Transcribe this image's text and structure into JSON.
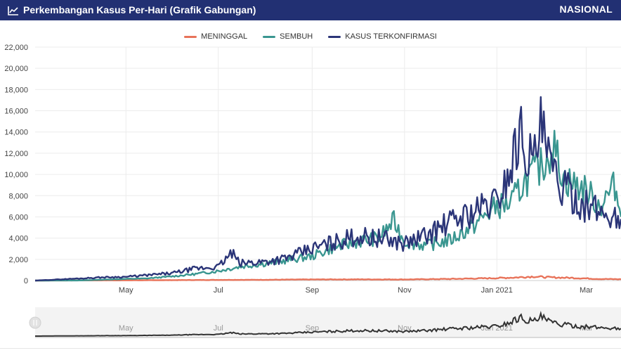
{
  "header": {
    "title": "Perkembangan Kasus Per-Hari (Grafik Gabungan)",
    "region": "NASIONAL",
    "bg_color": "#223073",
    "icon": "line-chart-icon"
  },
  "chart_data": {
    "type": "line",
    "x_axis_type": "date",
    "xlim": [
      "2020-03-02",
      "2021-03-24"
    ],
    "x_ticks": [
      {
        "date": "2020-05-01",
        "label": "May"
      },
      {
        "date": "2020-07-01",
        "label": "Jul"
      },
      {
        "date": "2020-09-01",
        "label": "Sep"
      },
      {
        "date": "2020-11-01",
        "label": "Nov"
      },
      {
        "date": "2021-01-01",
        "label": "Jan 2021"
      },
      {
        "date": "2021-03-01",
        "label": "Mar"
      }
    ],
    "ylim": [
      0,
      22000
    ],
    "y_ticks": [
      0,
      2000,
      4000,
      6000,
      8000,
      10000,
      12000,
      14000,
      16000,
      18000,
      20000,
      22000
    ],
    "y_tick_labels": [
      "0",
      "2,000",
      "4,000",
      "6,000",
      "8,000",
      "10,000",
      "12,000",
      "14,000",
      "16,000",
      "18,000",
      "20,000",
      "22,000"
    ],
    "grid": true,
    "legend_position": "top-center",
    "navigator": true,
    "series": [
      {
        "name": "MENINGGAL",
        "color": "#e8735a",
        "points": [
          [
            "2020-03-02",
            0
          ],
          [
            "2020-04-01",
            15
          ],
          [
            "2020-05-01",
            20
          ],
          [
            "2020-06-01",
            40
          ],
          [
            "2020-07-01",
            60
          ],
          [
            "2020-08-01",
            70
          ],
          [
            "2020-09-01",
            100
          ],
          [
            "2020-10-01",
            110
          ],
          [
            "2020-11-01",
            100
          ],
          [
            "2020-12-01",
            150
          ],
          [
            "2021-01-01",
            230
          ],
          [
            "2021-01-15",
            300
          ],
          [
            "2021-01-25",
            380
          ],
          [
            "2021-02-05",
            300
          ],
          [
            "2021-02-20",
            250
          ],
          [
            "2021-03-01",
            200
          ],
          [
            "2021-03-10",
            150
          ],
          [
            "2021-03-24",
            120
          ]
        ]
      },
      {
        "name": "SEMBUH",
        "color": "#3a9690",
        "points": [
          [
            "2020-03-02",
            0
          ],
          [
            "2020-04-01",
            10
          ],
          [
            "2020-04-15",
            80
          ],
          [
            "2020-05-01",
            150
          ],
          [
            "2020-05-15",
            200
          ],
          [
            "2020-06-01",
            400
          ],
          [
            "2020-06-15",
            600
          ],
          [
            "2020-07-01",
            900
          ],
          [
            "2020-07-15",
            1300
          ],
          [
            "2020-08-01",
            1600
          ],
          [
            "2020-08-15",
            1900
          ],
          [
            "2020-09-01",
            2300
          ],
          [
            "2020-09-15",
            3100
          ],
          [
            "2020-10-01",
            3700
          ],
          [
            "2020-10-15",
            4000
          ],
          [
            "2020-10-25",
            5600
          ],
          [
            "2020-11-01",
            3700
          ],
          [
            "2020-11-15",
            3300
          ],
          [
            "2020-12-01",
            3800
          ],
          [
            "2020-12-15",
            5000
          ],
          [
            "2021-01-01",
            7000
          ],
          [
            "2021-01-10",
            7200
          ],
          [
            "2021-01-20",
            9500
          ],
          [
            "2021-02-01",
            11000
          ],
          [
            "2021-02-07",
            12800
          ],
          [
            "2021-02-15",
            9500
          ],
          [
            "2021-03-01",
            8500
          ],
          [
            "2021-03-10",
            7000
          ],
          [
            "2021-03-20",
            9000
          ],
          [
            "2021-03-24",
            6000
          ]
        ]
      },
      {
        "name": "KASUS TERKONFIRMASI",
        "color": "#2b3578",
        "points": [
          [
            "2020-03-02",
            0
          ],
          [
            "2020-04-01",
            200
          ],
          [
            "2020-04-15",
            300
          ],
          [
            "2020-05-01",
            350
          ],
          [
            "2020-05-15",
            500
          ],
          [
            "2020-06-01",
            700
          ],
          [
            "2020-06-15",
            1100
          ],
          [
            "2020-07-01",
            1300
          ],
          [
            "2020-07-10",
            2600
          ],
          [
            "2020-07-15",
            1600
          ],
          [
            "2020-08-01",
            1800
          ],
          [
            "2020-08-15",
            2100
          ],
          [
            "2020-09-01",
            3000
          ],
          [
            "2020-09-15",
            3600
          ],
          [
            "2020-10-01",
            4200
          ],
          [
            "2020-10-15",
            4000
          ],
          [
            "2020-11-01",
            3500
          ],
          [
            "2020-11-15",
            4200
          ],
          [
            "2020-12-01",
            5500
          ],
          [
            "2020-12-15",
            6400
          ],
          [
            "2021-01-01",
            7500
          ],
          [
            "2021-01-10",
            10500
          ],
          [
            "2021-01-16",
            14200
          ],
          [
            "2021-01-25",
            11000
          ],
          [
            "2021-01-30",
            14300
          ],
          [
            "2021-02-07",
            10000
          ],
          [
            "2021-02-15",
            8500
          ],
          [
            "2021-03-01",
            7000
          ],
          [
            "2021-03-10",
            6500
          ],
          [
            "2021-03-24",
            5800
          ]
        ]
      }
    ],
    "navigator_labels": [
      "May",
      "Jul",
      "Sep",
      "Nov",
      "Jan 2021",
      "Mar"
    ]
  }
}
